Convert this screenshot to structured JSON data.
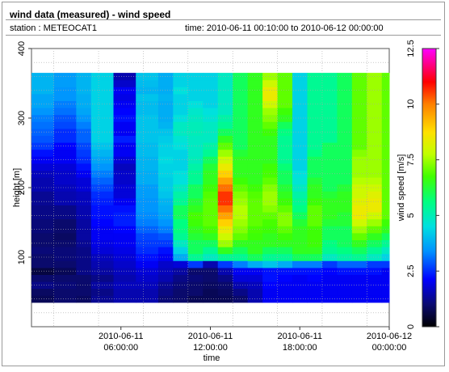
{
  "header": {
    "title": "wind data (measured) - wind speed",
    "station": "station : METEOCAT1",
    "time_range": "time: 2010-06-11 00:10:00 to 2010-06-12 00:00:00"
  },
  "chart_data": {
    "type": "heatmap",
    "xlabel": "time",
    "ylabel": "height [m]",
    "colorbar_label": "wind speed [m/s]",
    "x_range_hours": [
      0,
      24
    ],
    "ylim": [
      0,
      400
    ],
    "x_ticks": [
      {
        "hours": 6,
        "label": [
          "2010-06-11",
          "06:00:00"
        ]
      },
      {
        "hours": 12,
        "label": [
          "2010-06-11",
          "12:00:00"
        ]
      },
      {
        "hours": 18,
        "label": [
          "2010-06-11",
          "18:00:00"
        ]
      },
      {
        "hours": 24,
        "label": [
          "2010-06-12",
          "00:00:00"
        ]
      }
    ],
    "y_ticks": [
      100,
      200,
      300,
      400
    ],
    "colorbar_ticks": [
      0,
      2.5,
      5,
      7.5,
      10,
      12.5
    ],
    "color_range": [
      0,
      12.5
    ],
    "colormap": [
      "#000000",
      "#0a0a70",
      "#0000ff",
      "#0090ff",
      "#00e0e0",
      "#00ff80",
      "#40ff00",
      "#c0ff00",
      "#ffe000",
      "#ff8000",
      "#ff0000",
      "#ff0080",
      "#ff00ff"
    ],
    "height_levels": [
      40,
      50,
      60,
      70,
      80,
      90,
      100,
      110,
      120,
      130,
      140,
      150,
      160,
      170,
      180,
      190,
      200,
      210,
      220,
      230,
      240,
      250,
      260,
      270,
      280,
      290,
      300,
      310,
      320,
      330,
      340,
      350,
      360
    ],
    "time_profiles": [
      {
        "hours": 0.0,
        "speeds": [
          0.8,
          0.9,
          1.2,
          1.0,
          0.6,
          1.0,
          1.0,
          1.1,
          1.0,
          1.0,
          1.1,
          1.1,
          1.2,
          1.2,
          1.3,
          1.3,
          1.5,
          1.5,
          1.6,
          1.8,
          2.0,
          2.2,
          2.5,
          2.7,
          2.8,
          2.9,
          3.0,
          3.2,
          3.4,
          3.4,
          3.6,
          3.6,
          3.6
        ]
      },
      {
        "hours": 1.5,
        "speeds": [
          1.0,
          1.0,
          1.1,
          1.0,
          0.8,
          1.0,
          1.1,
          1.1,
          1.0,
          0.9,
          1.0,
          1.0,
          1.2,
          1.2,
          1.5,
          1.5,
          1.6,
          1.7,
          1.7,
          1.8,
          2.0,
          2.0,
          2.1,
          2.4,
          2.4,
          2.6,
          2.7,
          2.9,
          3.0,
          3.2,
          3.2,
          3.3,
          3.3
        ]
      },
      {
        "hours": 3.0,
        "speeds": [
          0.9,
          1.0,
          1.0,
          1.0,
          1.2,
          1.2,
          1.2,
          1.2,
          1.3,
          1.4,
          1.4,
          1.4,
          1.5,
          1.5,
          1.6,
          1.6,
          1.8,
          1.8,
          2.0,
          2.2,
          2.4,
          2.5,
          2.6,
          2.8,
          2.8,
          3.0,
          3.2,
          3.4,
          3.5,
          3.5,
          3.6,
          3.6,
          3.6
        ]
      },
      {
        "hours": 4.0,
        "speeds": [
          1.3,
          1.2,
          1.4,
          1.2,
          1.4,
          1.5,
          1.6,
          1.8,
          1.9,
          2.0,
          2.0,
          2.1,
          2.2,
          2.2,
          2.3,
          2.4,
          2.6,
          2.8,
          3.0,
          3.2,
          3.4,
          3.6,
          3.8,
          4.0,
          4.0,
          4.0,
          4.0,
          4.0,
          4.0,
          4.0,
          4.0,
          4.0,
          4.0
        ]
      },
      {
        "hours": 5.5,
        "speeds": [
          1.5,
          1.5,
          1.6,
          1.5,
          1.6,
          1.7,
          1.8,
          1.9,
          2.0,
          2.0,
          2.1,
          2.3,
          2.3,
          2.2,
          2.0,
          1.8,
          1.8,
          1.7,
          1.7,
          1.6,
          1.8,
          2.0,
          2.0,
          2.3,
          2.0,
          2.0,
          2.2,
          2.1,
          2.0,
          1.9,
          2.0,
          1.7,
          1.5
        ]
      },
      {
        "hours": 7.0,
        "speeds": [
          1.5,
          1.5,
          1.6,
          1.7,
          1.8,
          2.0,
          2.2,
          2.4,
          2.5,
          2.6,
          2.8,
          3.0,
          3.1,
          3.2,
          3.2,
          3.3,
          3.3,
          3.5,
          3.5,
          3.6,
          3.6,
          3.7,
          3.7,
          3.8,
          3.8,
          3.8,
          3.8,
          3.7,
          3.7,
          3.8,
          3.6,
          3.7,
          3.8
        ]
      },
      {
        "hours": 8.5,
        "speeds": [
          1.1,
          1.2,
          1.3,
          1.5,
          1.6,
          1.7,
          2.0,
          2.2,
          2.5,
          2.7,
          3.0,
          3.2,
          3.4,
          3.5,
          3.6,
          3.8,
          3.9,
          3.9,
          4.0,
          4.0,
          4.1,
          4.0,
          4.0,
          3.9,
          3.8,
          3.6,
          3.5,
          3.5,
          3.5,
          3.6,
          3.5,
          3.5,
          3.5
        ]
      },
      {
        "hours": 9.5,
        "speeds": [
          1.0,
          1.0,
          1.1,
          1.2,
          1.4,
          1.8,
          3.5,
          4.0,
          4.5,
          5.0,
          5.2,
          5.2,
          5.5,
          5.5,
          5.0,
          4.8,
          4.5,
          4.2,
          4.2,
          4.0,
          4.0,
          4.0,
          4.2,
          4.3,
          4.5,
          4.5,
          4.2,
          4.0,
          4.0,
          4.0,
          4.2,
          4.0,
          4.0
        ]
      },
      {
        "hours": 10.5,
        "speeds": [
          0.8,
          1.0,
          1.0,
          1.1,
          1.0,
          2.5,
          5.0,
          5.5,
          5.5,
          5.8,
          6.0,
          6.2,
          6.3,
          6.0,
          5.8,
          5.5,
          5.5,
          5.0,
          5.0,
          4.8,
          4.6,
          4.5,
          4.5,
          4.5,
          4.6,
          4.6,
          4.5,
          4.4,
          4.2,
          4.0,
          4.0,
          4.0,
          4.0
        ]
      },
      {
        "hours": 11.5,
        "speeds": [
          0.8,
          0.8,
          0.9,
          1.0,
          1.0,
          1.5,
          4.5,
          5.0,
          5.5,
          6.0,
          6.3,
          6.5,
          6.5,
          6.5,
          6.5,
          6.4,
          6.2,
          6.0,
          6.0,
          5.8,
          5.5,
          5.0,
          4.8,
          4.5,
          4.5,
          4.5,
          4.3,
          4.2,
          4.0,
          4.0,
          4.0,
          4.0,
          4.0
        ]
      },
      {
        "hours": 12.5,
        "speeds": [
          0.8,
          0.9,
          1.0,
          1.2,
          1.5,
          2.5,
          5.0,
          6.0,
          7.0,
          7.5,
          8.0,
          8.5,
          9.0,
          9.5,
          10.0,
          10.0,
          9.5,
          9.0,
          8.5,
          8.0,
          7.5,
          7.0,
          6.5,
          6.0,
          5.5,
          5.0,
          4.8,
          4.5,
          4.5,
          4.5,
          4.5,
          4.5,
          4.5
        ]
      },
      {
        "hours": 13.5,
        "speeds": [
          1.0,
          1.2,
          1.5,
          1.8,
          2.0,
          3.0,
          5.0,
          5.5,
          6.0,
          6.5,
          6.8,
          7.0,
          7.2,
          7.2,
          7.0,
          6.8,
          6.5,
          6.2,
          6.0,
          6.0,
          6.0,
          5.8,
          5.5,
          5.5,
          5.5,
          5.5,
          5.5,
          5.5,
          5.5,
          5.5,
          5.5,
          5.5,
          5.5
        ]
      },
      {
        "hours": 14.5,
        "speeds": [
          1.5,
          1.5,
          1.6,
          1.8,
          2.0,
          3.5,
          5.5,
          6.0,
          6.0,
          6.2,
          6.3,
          6.5,
          6.5,
          6.5,
          6.5,
          6.4,
          6.2,
          6.0,
          6.0,
          6.0,
          6.0,
          6.0,
          6.0,
          6.0,
          6.0,
          6.0,
          6.0,
          6.0,
          6.0,
          6.0,
          6.0,
          6.0,
          6.0
        ]
      },
      {
        "hours": 15.5,
        "speeds": [
          2.0,
          2.0,
          2.1,
          2.2,
          2.2,
          3.8,
          5.0,
          5.5,
          6.0,
          6.0,
          6.2,
          6.3,
          6.5,
          6.8,
          7.0,
          7.0,
          6.8,
          6.5,
          6.3,
          6.2,
          6.0,
          6.0,
          6.0,
          6.0,
          6.2,
          6.5,
          6.8,
          7.0,
          7.5,
          8.0,
          8.0,
          7.5,
          7.0
        ]
      },
      {
        "hours": 16.5,
        "speeds": [
          2.0,
          2.0,
          2.0,
          2.1,
          2.2,
          3.5,
          5.0,
          5.5,
          6.0,
          6.2,
          6.5,
          6.8,
          6.8,
          6.5,
          6.2,
          6.0,
          5.8,
          5.5,
          5.5,
          5.3,
          5.0,
          5.0,
          5.0,
          5.0,
          5.2,
          5.5,
          6.0,
          6.2,
          6.5,
          6.5,
          6.5,
          6.5,
          6.5
        ]
      },
      {
        "hours": 17.5,
        "speeds": [
          2.0,
          2.0,
          2.0,
          2.0,
          2.2,
          3.0,
          5.5,
          6.0,
          6.0,
          6.0,
          6.0,
          5.8,
          5.5,
          5.2,
          5.0,
          4.8,
          4.5,
          4.3,
          4.2,
          4.0,
          4.0,
          4.0,
          4.0,
          4.0,
          4.0,
          4.0,
          4.0,
          4.0,
          4.0,
          4.0,
          4.0,
          4.0,
          4.0
        ]
      },
      {
        "hours": 18.5,
        "speeds": [
          2.0,
          2.0,
          2.0,
          2.1,
          2.2,
          3.0,
          5.5,
          6.0,
          6.2,
          6.2,
          6.2,
          6.5,
          6.5,
          6.5,
          6.2,
          6.0,
          6.0,
          5.8,
          5.5,
          5.5,
          5.5,
          5.2,
          5.0,
          5.0,
          5.0,
          5.0,
          5.0,
          5.0,
          5.0,
          5.0,
          5.0,
          5.0,
          5.0
        ]
      },
      {
        "hours": 19.5,
        "speeds": [
          2.0,
          2.0,
          2.0,
          2.0,
          2.1,
          2.5,
          4.5,
          5.0,
          5.2,
          5.5,
          5.5,
          5.8,
          6.0,
          6.0,
          6.0,
          5.8,
          5.5,
          5.5,
          5.5,
          5.5,
          5.5,
          5.5,
          5.5,
          5.0,
          5.0,
          5.0,
          5.0,
          5.0,
          5.0,
          5.0,
          5.0,
          5.0,
          5.0
        ]
      },
      {
        "hours": 20.5,
        "speeds": [
          2.0,
          2.0,
          2.0,
          2.0,
          2.2,
          2.8,
          4.8,
          5.2,
          5.5,
          5.5,
          5.5,
          5.8,
          5.8,
          6.0,
          6.0,
          6.0,
          5.8,
          5.5,
          5.5,
          5.5,
          5.5,
          5.5,
          5.5,
          5.5,
          5.5,
          5.5,
          5.5,
          5.5,
          5.5,
          5.5,
          5.5,
          5.5,
          5.5
        ]
      },
      {
        "hours": 21.5,
        "speeds": [
          2.0,
          2.0,
          2.0,
          2.0,
          2.2,
          2.8,
          5.0,
          5.5,
          6.0,
          6.5,
          7.0,
          7.5,
          8.0,
          8.0,
          7.8,
          7.5,
          7.5,
          7.2,
          7.0,
          7.0,
          7.0,
          6.8,
          6.5,
          6.5,
          6.5,
          6.5,
          6.5,
          6.5,
          6.5,
          6.5,
          6.5,
          6.5,
          6.5
        ]
      },
      {
        "hours": 22.5,
        "speeds": [
          2.0,
          2.0,
          2.0,
          2.0,
          2.2,
          2.5,
          4.5,
          5.0,
          5.5,
          6.0,
          6.5,
          7.0,
          7.5,
          8.0,
          8.0,
          7.8,
          7.5,
          7.2,
          7.0,
          7.0,
          7.0,
          7.0,
          7.0,
          7.0,
          7.0,
          7.0,
          7.0,
          7.0,
          7.0,
          7.0,
          7.0,
          7.0,
          7.0
        ]
      },
      {
        "hours": 23.5,
        "speeds": [
          2.0,
          2.0,
          2.0,
          2.0,
          2.0,
          2.5,
          4.0,
          4.5,
          5.0,
          5.5,
          6.0,
          6.2,
          6.5,
          6.5,
          6.5,
          6.5,
          6.5,
          6.5,
          6.5,
          6.5,
          6.5,
          6.5,
          6.5,
          6.5,
          6.5,
          6.5,
          6.5,
          6.5,
          6.5,
          6.5,
          6.5,
          6.5,
          6.5
        ]
      }
    ]
  }
}
